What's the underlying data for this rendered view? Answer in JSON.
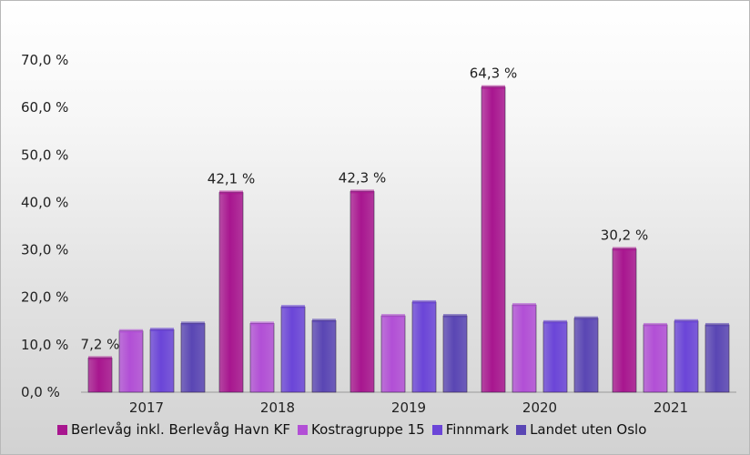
{
  "chart_data": {
    "type": "bar",
    "title": "",
    "xlabel": "",
    "ylabel": "",
    "categories": [
      "2017",
      "2018",
      "2019",
      "2020",
      "2021"
    ],
    "ylim": [
      0,
      70
    ],
    "y_ticks": [
      "0,0 %",
      "10,0 %",
      "20,0 %",
      "30,0 %",
      "40,0 %",
      "50,0 %",
      "60,0 %",
      "70,0 %"
    ],
    "grid": false,
    "legend_position": "bottom",
    "series": [
      {
        "name": "Berlevåg inkl. Berlevåg Havn KF",
        "color": "#a8168f",
        "values": [
          7.2,
          42.1,
          42.3,
          64.3,
          30.2
        ],
        "data_labels": [
          "7,2 %",
          "42,1 %",
          "42,3 %",
          "64,3 %",
          "30,2 %"
        ]
      },
      {
        "name": "Kostragruppe 15",
        "color": "#b24fd6",
        "values": [
          12.9,
          14.5,
          16.1,
          18.4,
          14.2
        ]
      },
      {
        "name": "Finnmark",
        "color": "#6b45d8",
        "values": [
          13.2,
          18.0,
          19.0,
          14.8,
          15.0
        ]
      },
      {
        "name": "Landet uten Oslo",
        "color": "#5a46b4",
        "values": [
          14.5,
          15.1,
          16.1,
          15.6,
          14.2
        ]
      }
    ]
  }
}
